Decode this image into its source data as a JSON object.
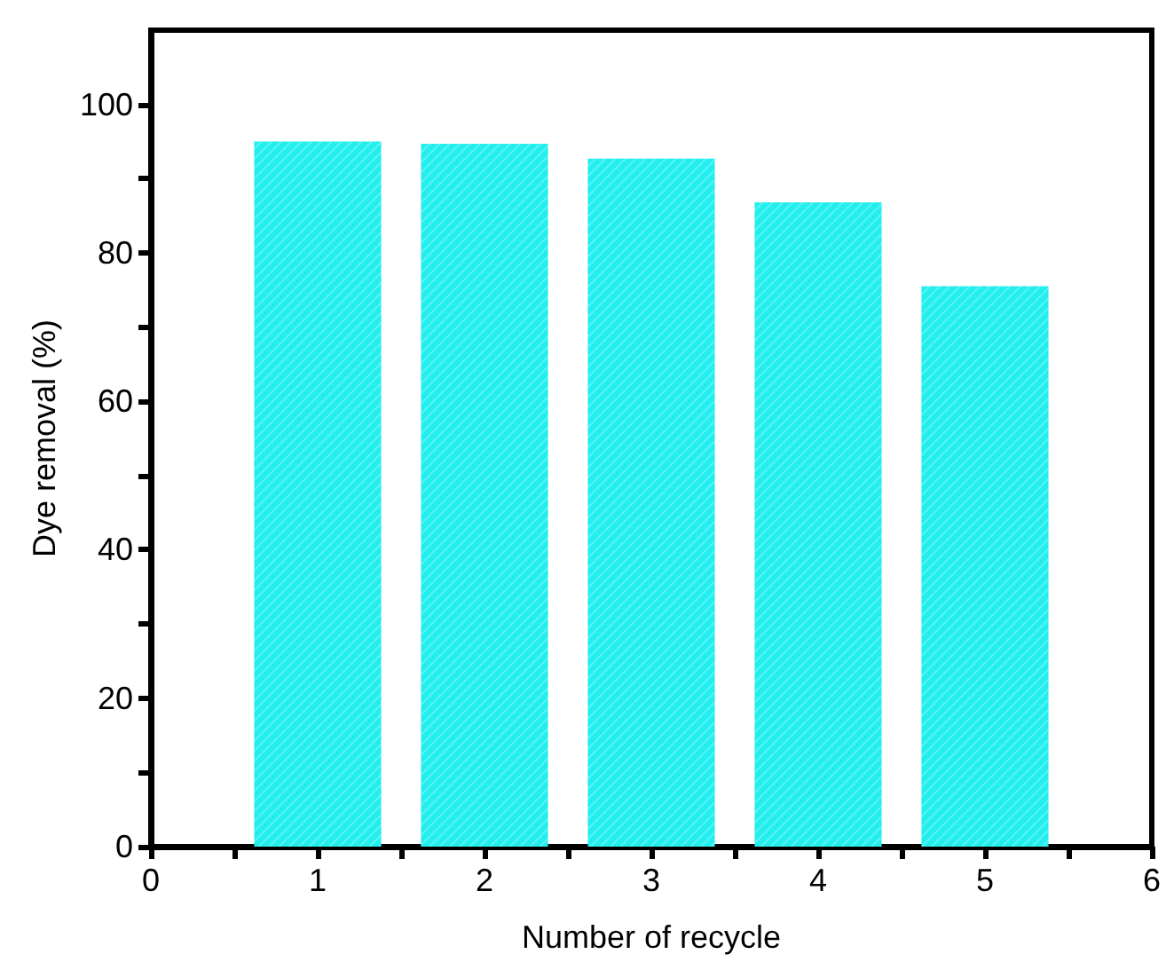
{
  "chart_data": {
    "type": "bar",
    "xlabel": "Number of recycle",
    "ylabel": "Dye removal (%)",
    "x": [
      1,
      2,
      3,
      4,
      5
    ],
    "values": [
      95,
      94.7,
      92.7,
      86.8,
      75.5
    ],
    "color": "#22eeee",
    "xlim": [
      0,
      6
    ],
    "xticks": [
      0,
      {
        "value": 0.5,
        "label": null
      },
      1,
      {
        "value": 1.5,
        "label": null
      },
      2,
      {
        "value": 2.5,
        "label": null
      },
      3,
      {
        "value": 3.5,
        "label": null
      },
      4,
      {
        "value": 4.5,
        "label": null
      },
      5,
      {
        "value": 5.5,
        "label": null
      },
      6
    ],
    "ylim": [
      0,
      110
    ],
    "yticks": [
      0,
      {
        "value": 10,
        "label": null
      },
      20,
      {
        "value": 30,
        "label": null
      },
      40,
      {
        "value": 50,
        "label": null
      },
      60,
      {
        "value": 70,
        "label": null
      },
      80,
      {
        "value": 90,
        "label": null
      },
      100
    ],
    "grid": false
  }
}
